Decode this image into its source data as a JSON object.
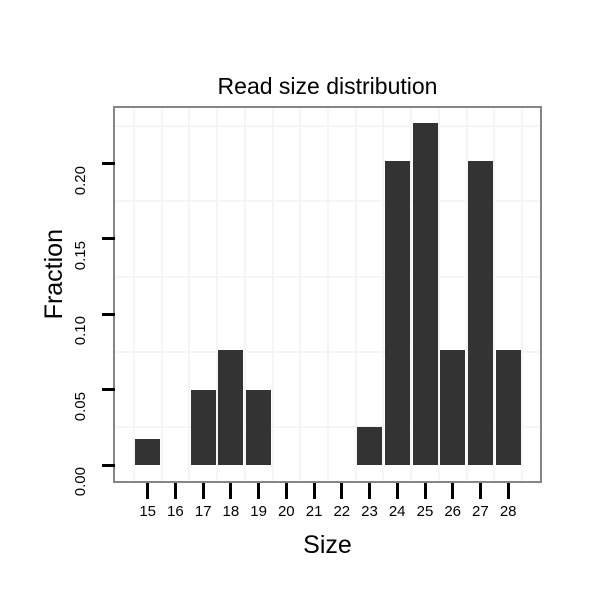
{
  "chart_data": {
    "type": "bar",
    "title": "Read size distribution",
    "xlabel": "Size",
    "ylabel": "Fraction",
    "categories": [
      15,
      16,
      17,
      18,
      19,
      20,
      21,
      22,
      23,
      24,
      25,
      26,
      27,
      28
    ],
    "values": [
      0.017,
      0,
      0.05,
      0.076,
      0.05,
      0,
      0,
      0,
      0.025,
      0.202,
      0.227,
      0.076,
      0.202,
      0.076
    ],
    "ylim": [
      -0.011,
      0.238
    ],
    "y_major_ticks": [
      0,
      0.05,
      0.1,
      0.15,
      0.2
    ],
    "y_tick_labels": [
      "0.00",
      "0.05",
      "0.10",
      "0.15",
      "0.20"
    ],
    "y_minor_gridlines": [
      0.025,
      0.075,
      0.125,
      0.175,
      0.225
    ],
    "x_minor_between_categories": true,
    "grid": "minor_only",
    "legend": "none",
    "bar_width_fraction": 0.9,
    "colors": {
      "bar": "#333333",
      "panel_border": "#858585",
      "minor_grid": "#f5f5f5",
      "tick": "#000000",
      "text": "#000000",
      "panel_background": "#ffffff",
      "figure_background": "#ffffff"
    }
  }
}
